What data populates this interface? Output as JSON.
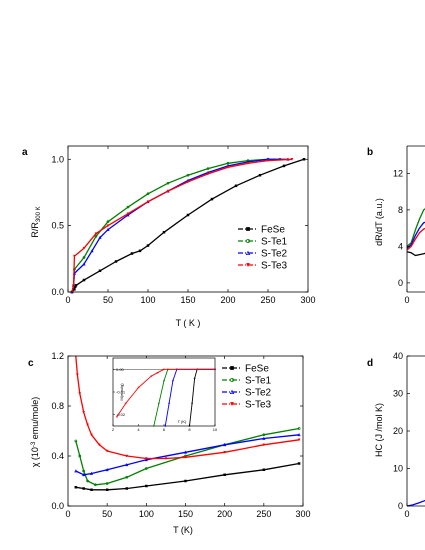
{
  "chart_data": [
    {
      "type": "line",
      "panel_label": "a",
      "xlabel": "T ( K )",
      "ylabel": "R/R",
      "ylabel_sub": "300 K",
      "xlim": [
        0,
        300
      ],
      "ylim": [
        0,
        1.1
      ],
      "xticks": [
        "0",
        "50",
        "100",
        "150",
        "200",
        "250",
        "300"
      ],
      "yticks": [
        "0.0",
        "0.5",
        "1.0"
      ],
      "legend_position": "center-right",
      "series": [
        {
          "name": "FeSe",
          "color": "#000000",
          "marker": "square",
          "x": [
            5,
            8,
            9,
            10,
            20,
            40,
            60,
            80,
            90,
            100,
            120,
            150,
            180,
            210,
            240,
            270,
            295
          ],
          "y": [
            0,
            0.02,
            0.04,
            0.05,
            0.09,
            0.16,
            0.23,
            0.29,
            0.31,
            0.35,
            0.45,
            0.58,
            0.7,
            0.8,
            0.88,
            0.95,
            1.0
          ]
        },
        {
          "name": "S-Te1",
          "color": "#008000",
          "marker": "circle",
          "x": [
            5,
            7,
            8,
            20,
            35,
            50,
            75,
            100,
            125,
            150,
            175,
            200,
            225,
            250,
            265
          ],
          "y": [
            0,
            0.05,
            0.17,
            0.26,
            0.42,
            0.53,
            0.64,
            0.74,
            0.82,
            0.88,
            0.93,
            0.97,
            0.99,
            1.0,
            1.0
          ]
        },
        {
          "name": "S-Te2",
          "color": "#0000ff",
          "marker": "triangle",
          "x": [
            5,
            7,
            8,
            20,
            30,
            40,
            50,
            75,
            100,
            125,
            150,
            175,
            200,
            225,
            250,
            275
          ],
          "y": [
            0,
            0.05,
            0.14,
            0.21,
            0.31,
            0.41,
            0.47,
            0.58,
            0.68,
            0.76,
            0.84,
            0.9,
            0.95,
            0.98,
            1.0,
            1.0
          ]
        },
        {
          "name": "S-Te3",
          "color": "#ff0000",
          "marker": "triangle-down",
          "x": [
            5,
            7,
            8,
            20,
            35,
            50,
            75,
            100,
            125,
            150,
            175,
            200,
            225,
            250,
            280
          ],
          "y": [
            0,
            0.05,
            0.27,
            0.33,
            0.44,
            0.5,
            0.59,
            0.68,
            0.76,
            0.83,
            0.89,
            0.94,
            0.97,
            0.99,
            1.0
          ]
        }
      ]
    },
    {
      "type": "line",
      "panel_label": "b",
      "ylabel": "dR/dT (a.u.)",
      "ylim": [
        -1,
        15
      ],
      "yticks": [
        "0",
        "4",
        "8",
        "12"
      ],
      "xticks": [
        "0"
      ],
      "series": [
        {
          "name": "FeSe",
          "color": "#000000",
          "x": [
            0,
            4,
            8,
            12,
            16,
            22
          ],
          "y": [
            3.4,
            3.3,
            3.0,
            3.1,
            3.2,
            3.4
          ]
        },
        {
          "name": "S-Te1",
          "color": "#008000",
          "x": [
            0,
            4,
            8,
            12,
            16,
            22
          ],
          "y": [
            4.0,
            4.4,
            5.8,
            7.0,
            8.0,
            8.5
          ]
        },
        {
          "name": "S-Te2",
          "color": "#0000ff",
          "x": [
            0,
            4,
            8,
            12,
            16,
            22
          ],
          "y": [
            3.8,
            4.2,
            5.2,
            6.0,
            6.6,
            6.8
          ]
        },
        {
          "name": "S-Te3",
          "color": "#ff0000",
          "x": [
            0,
            4,
            8,
            12,
            16,
            22
          ],
          "y": [
            3.6,
            4.0,
            4.8,
            5.5,
            5.9,
            6.2
          ]
        }
      ]
    },
    {
      "type": "line",
      "panel_label": "c",
      "xlabel": "T (K)",
      "ylabel": "χ (10",
      "ylabel_sup": "-3",
      "ylabel_rest": " emu/mole)",
      "xlim": [
        0,
        300
      ],
      "ylim": [
        0,
        1.2
      ],
      "xticks": [
        "0",
        "50",
        "100",
        "150",
        "200",
        "250",
        "300"
      ],
      "yticks": [
        "0.0",
        "0.4",
        "0.8",
        "1.2"
      ],
      "legend_position": "top-right",
      "series": [
        {
          "name": "FeSe",
          "color": "#000000",
          "marker": "square",
          "x": [
            10,
            20,
            30,
            50,
            75,
            100,
            150,
            200,
            250,
            295
          ],
          "y": [
            0.15,
            0.14,
            0.13,
            0.13,
            0.14,
            0.16,
            0.2,
            0.25,
            0.29,
            0.34
          ]
        },
        {
          "name": "S-Te1",
          "color": "#008000",
          "marker": "circle",
          "x": [
            10,
            15,
            20,
            25,
            35,
            50,
            75,
            100,
            150,
            200,
            250,
            295
          ],
          "y": [
            0.52,
            0.4,
            0.28,
            0.2,
            0.17,
            0.18,
            0.23,
            0.3,
            0.4,
            0.49,
            0.57,
            0.62
          ]
        },
        {
          "name": "S-Te2",
          "color": "#0000ff",
          "marker": "triangle",
          "x": [
            10,
            20,
            30,
            50,
            75,
            100,
            150,
            200,
            250,
            295
          ],
          "y": [
            0.28,
            0.25,
            0.26,
            0.29,
            0.33,
            0.37,
            0.43,
            0.49,
            0.54,
            0.57
          ]
        },
        {
          "name": "S-Te3",
          "color": "#ff0000",
          "marker": "triangle-down",
          "x": [
            10,
            12,
            15,
            20,
            25,
            30,
            40,
            50,
            75,
            100,
            125,
            150,
            200,
            250,
            295
          ],
          "y": [
            1.2,
            1.05,
            0.9,
            0.75,
            0.65,
            0.57,
            0.49,
            0.44,
            0.4,
            0.38,
            0.38,
            0.39,
            0.43,
            0.49,
            0.53
          ]
        }
      ],
      "inset": {
        "xlabel": "T (K)",
        "ylabel": "M(emu/g)",
        "xlim": [
          2,
          10
        ],
        "ylim": [
          -0.025,
          0.005
        ],
        "xticks": [
          "2",
          "4",
          "6",
          "8",
          "10"
        ],
        "yticks": [
          "0.00",
          "-0.01",
          "-0.02"
        ],
        "series": [
          {
            "name": "FeSe",
            "color": "#000000",
            "x": [
              8.0,
              8.2,
              8.4,
              8.6,
              10
            ],
            "y": [
              -0.025,
              -0.015,
              -0.004,
              0,
              0
            ]
          },
          {
            "name": "S-Te1",
            "color": "#008000",
            "x": [
              5.2,
              5.6,
              6.0,
              6.3,
              10
            ],
            "y": [
              -0.025,
              -0.015,
              -0.005,
              0,
              0
            ]
          },
          {
            "name": "S-Te2",
            "color": "#0000ff",
            "x": [
              6.1,
              6.4,
              6.7,
              7.0,
              10
            ],
            "y": [
              -0.025,
              -0.015,
              -0.005,
              0,
              0
            ]
          },
          {
            "name": "S-Te3",
            "color": "#ff0000",
            "x": [
              2.3,
              3,
              4,
              5,
              5.5,
              6,
              10
            ],
            "y": [
              -0.021,
              -0.015,
              -0.008,
              -0.003,
              -0.0015,
              0,
              0
            ]
          }
        ]
      }
    },
    {
      "type": "line",
      "panel_label": "d",
      "ylabel": "HC (J /mol K)",
      "ylim": [
        0,
        40
      ],
      "yticks": [
        "0",
        "10",
        "20",
        "30",
        "40"
      ],
      "xticks": [
        "0"
      ],
      "series": [
        {
          "name": "S-Te2",
          "color": "#0000ff",
          "x": [
            0,
            5,
            10,
            15,
            20
          ],
          "y": [
            0,
            0.3,
            0.8,
            1.4,
            2.0
          ]
        }
      ]
    }
  ]
}
